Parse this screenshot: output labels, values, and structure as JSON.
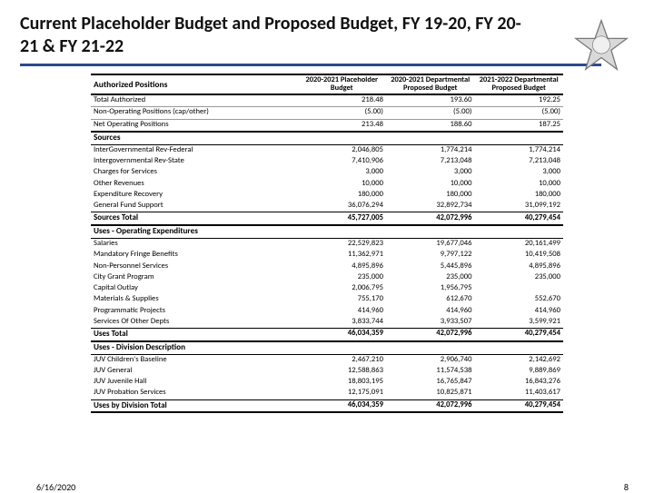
{
  "title": "Current Placeholder Budget and Proposed Budget, FY 19-20, FY 20-21 & FY 21-22",
  "footer": {
    "date": "6/16/2020",
    "page": "8"
  },
  "columns": {
    "positions_label": "Authorized Positions",
    "c1": "2020-2021 Placeholder Budget",
    "c2": "2020-2021 Departmental Proposed Budget",
    "c3": "2021-2022 Departmental Proposed Budget"
  },
  "positions": [
    {
      "label": "Total Authorized",
      "v1": "218.48",
      "v2": "193.60",
      "v3": "192.25"
    },
    {
      "label": "Non-Operating Positions (cap/other)",
      "v1": "(5.00)",
      "v2": "(5.00)",
      "v3": "(5.00)"
    }
  ],
  "netpos": {
    "label": "Net Operating Positions",
    "v1": "213.48",
    "v2": "188.60",
    "v3": "187.25"
  },
  "sources_header": "Sources",
  "sources": [
    {
      "label": "InterGovernmental Rev-Federal",
      "v1": "2,046,805",
      "v2": "1,774,214",
      "v3": "1,774,214"
    },
    {
      "label": "Intergovernmental Rev-State",
      "v1": "7,410,906",
      "v2": "7,213,048",
      "v3": "7,213,048"
    },
    {
      "label": "Charges for Services",
      "v1": "3,000",
      "v2": "3,000",
      "v3": "3,000"
    },
    {
      "label": "Other Revenues",
      "v1": "10,000",
      "v2": "10,000",
      "v3": "10,000"
    },
    {
      "label": "Expenditure Recovery",
      "v1": "180,000",
      "v2": "180,000",
      "v3": "180,000"
    },
    {
      "label": "General Fund Support",
      "v1": "36,076,294",
      "v2": "32,892,734",
      "v3": "31,099,192"
    }
  ],
  "sources_total": {
    "label": "Sources Total",
    "v1": "45,727,005",
    "v2": "42,072,996",
    "v3": "40,279,454"
  },
  "uses_header": "Uses - Operating Expenditures",
  "uses": [
    {
      "label": "Salaries",
      "v1": "22,529,823",
      "v2": "19,677,046",
      "v3": "20,161,499"
    },
    {
      "label": "Mandatory Fringe Benefits",
      "v1": "11,362,971",
      "v2": "9,797,122",
      "v3": "10,419,508"
    },
    {
      "label": "Non-Personnel Services",
      "v1": "4,895,896",
      "v2": "5,445,896",
      "v3": "4,895,896"
    },
    {
      "label": "City Grant Program",
      "v1": "235,000",
      "v2": "235,000",
      "v3": "235,000"
    },
    {
      "label": "Capital Outlay",
      "v1": "2,006,795",
      "v2": "1,956,795",
      "v3": ""
    },
    {
      "label": "Materials & Supplies",
      "v1": "755,170",
      "v2": "612,670",
      "v3": "552,670"
    },
    {
      "label": "Programmatic Projects",
      "v1": "414,960",
      "v2": "414,960",
      "v3": "414,960"
    },
    {
      "label": "Services Of Other Depts",
      "v1": "3,833,744",
      "v2": "3,933,507",
      "v3": "3,599,921"
    }
  ],
  "uses_total": {
    "label": "Uses Total",
    "v1": "46,034,359",
    "v2": "42,072,996",
    "v3": "40,279,454"
  },
  "div_header": "Uses - Division Description",
  "divisions": [
    {
      "label": "JUV Children's Baseline",
      "v1": "2,467,210",
      "v2": "2,906,740",
      "v3": "2,142,692"
    },
    {
      "label": "JUV General",
      "v1": "12,588,863",
      "v2": "11,574,538",
      "v3": "9,889,869"
    },
    {
      "label": "JUV Juvenile Hall",
      "v1": "18,803,195",
      "v2": "16,765,847",
      "v3": "16,843,276"
    },
    {
      "label": "JUV Probation Services",
      "v1": "12,175,091",
      "v2": "10,825,871",
      "v3": "11,403,617"
    }
  ],
  "div_total": {
    "label": "Uses by Division Total",
    "v1": "46,034,359",
    "v2": "42,072,996",
    "v3": "40,279,454"
  }
}
